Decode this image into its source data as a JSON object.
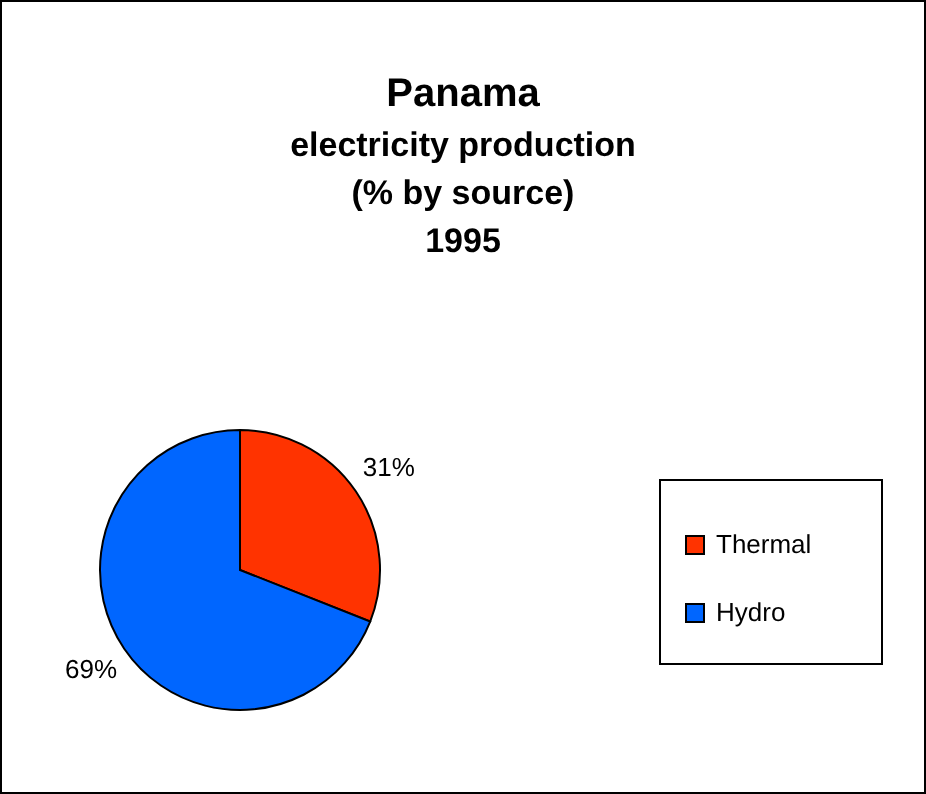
{
  "chart_data": {
    "type": "pie",
    "title": "Panama",
    "subtitle": "electricity production\n(% by source)\n1995",
    "categories": [
      "Thermal",
      "Hydro"
    ],
    "values": [
      31,
      69
    ],
    "colors": [
      "#ff3300",
      "#0066ff"
    ],
    "value_labels": [
      "31%",
      "69%"
    ],
    "legend": "right"
  }
}
